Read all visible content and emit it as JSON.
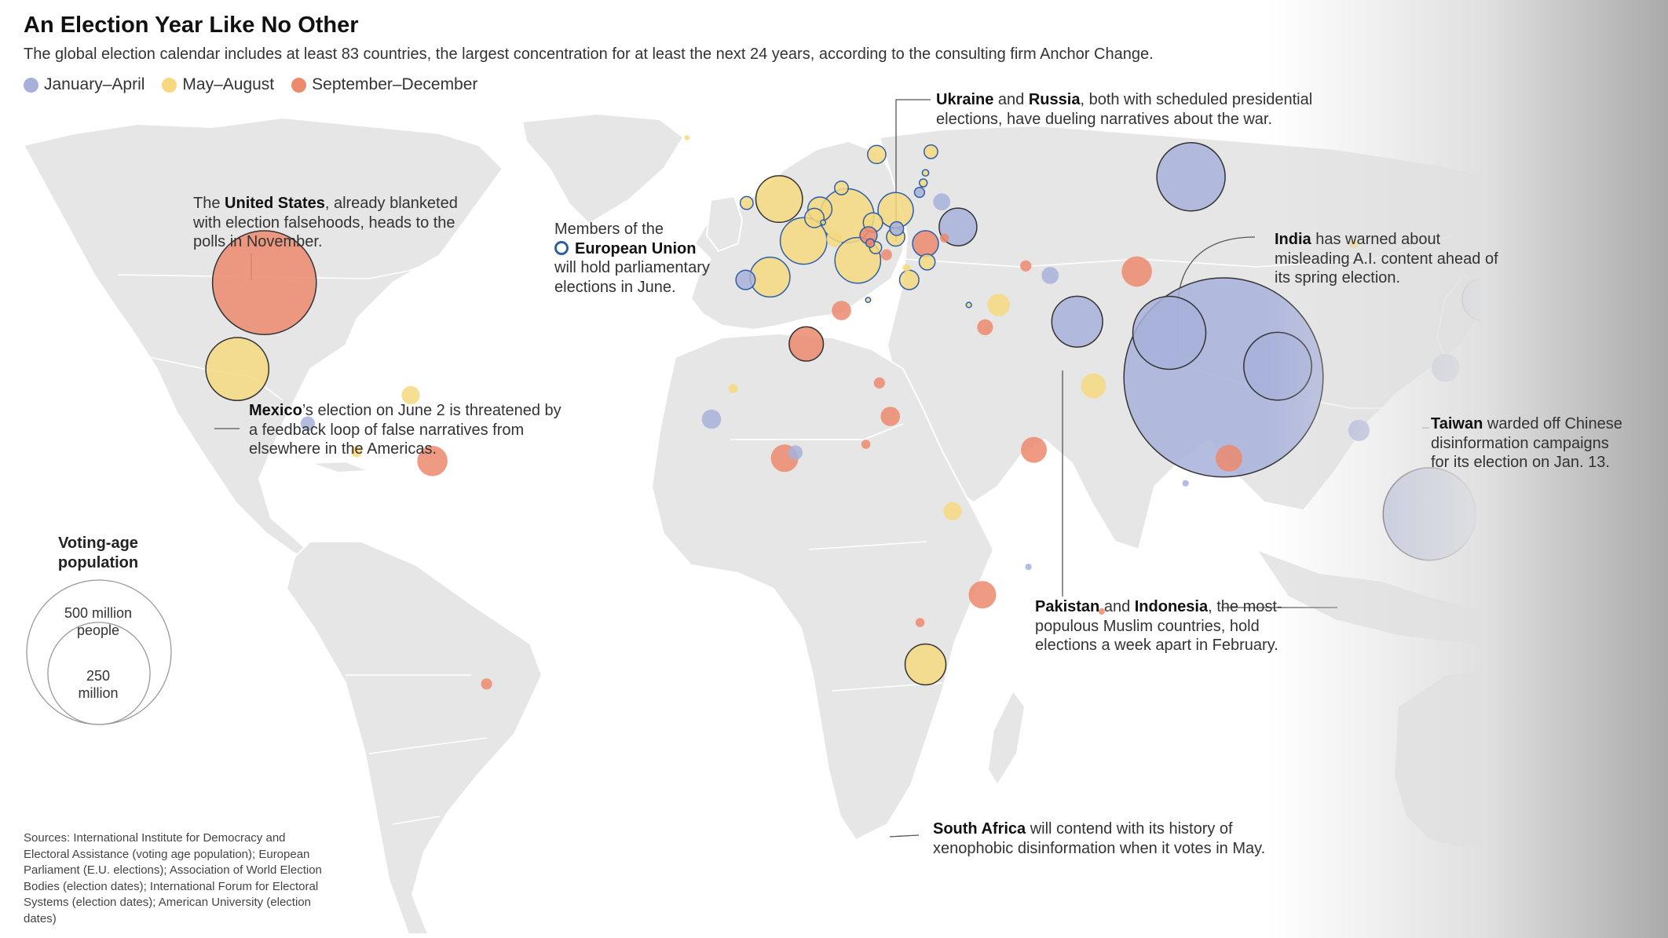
{
  "title": "An Election Year Like No Other",
  "subtitle": "The global election calendar includes at least 83 countries, the largest concentration for at least the next 24 years, according to the consulting firm Anchor Change.",
  "colors": {
    "jan_apr": "#a7b0da",
    "may_aug": "#f5d880",
    "sep_dec": "#ec8a6e",
    "eu_stroke": "#2f5fa8",
    "land": "#e6e6e6",
    "border": "#ffffff"
  },
  "legend": [
    {
      "label": "January–April",
      "color": "#a7b0da"
    },
    {
      "label": "May–August",
      "color": "#f5d880"
    },
    {
      "label": "September–December",
      "color": "#ec8a6e"
    }
  ],
  "annotations": {
    "us": {
      "pre": "The ",
      "bold": "United States",
      "post": ", already blanketed with election falsehoods, heads to the polls in November."
    },
    "mexico": {
      "bold": "Mexico",
      "post": "’s election on June 2 is threatened by a feedback loop of false narratives from elsewhere in the Americas."
    },
    "eu": {
      "pre": "Members of the",
      "bold": "European Union",
      "post": "will hold parliamentary elections in June."
    },
    "ukraine": {
      "bold1": "Ukraine",
      "mid": " and ",
      "bold2": "Russia",
      "post": ", both with scheduled presidential elections, have dueling narratives about the war."
    },
    "india": {
      "bold": "India",
      "post": " has warned about misleading A.I. content ahead of its spring election."
    },
    "taiwan": {
      "bold": "Taiwan",
      "post": " warded off Chinese disinformation campaigns for its election on Jan. 13."
    },
    "pakistan": {
      "bold1": "Pakistan",
      "mid": " and ",
      "bold2": "Indonesia",
      "post": ", the most-populous Muslim countries, hold elections a week apart in February."
    },
    "south_africa": {
      "bold": "South Africa",
      "post": " will contend with its history of xenophobic disinformation when it votes in May."
    }
  },
  "size_legend": {
    "title": "Voting-age population",
    "large_label": "500 million people",
    "small_label": "250 million",
    "large_value_millions": 500,
    "small_value_millions": 250
  },
  "sources": "Sources: International Institute for Democracy and Electoral Assistance (voting age population); European Parliament (E.U. elections); Association of World Election Bodies (election dates); International Forum for Electoral Systems (election dates); American University (election dates)",
  "countries": [
    {
      "name": "United States",
      "period": "sep_dec",
      "pop_m": 258,
      "lon": -97,
      "lat": 39
    },
    {
      "name": "Mexico",
      "period": "may_aug",
      "pop_m": 95,
      "lon": -102,
      "lat": 23.5
    },
    {
      "name": "Ukraine",
      "period": "jan_apr",
      "pop_m": 34,
      "lon": 31,
      "lat": 49
    },
    {
      "name": "Russia",
      "period": "jan_apr",
      "pop_m": 112,
      "lon": 74,
      "lat": 58
    },
    {
      "name": "India",
      "period": "jan_apr",
      "pop_m": 950,
      "lon": 80,
      "lat": 22
    },
    {
      "name": "Pakistan",
      "period": "jan_apr",
      "pop_m": 128,
      "lon": 70,
      "lat": 30
    },
    {
      "name": "Bangladesh",
      "period": "jan_apr",
      "pop_m": 110,
      "lon": 90,
      "lat": 24
    },
    {
      "name": "Indonesia",
      "period": "jan_apr",
      "pop_m": 205,
      "lon": 118,
      "lat": -2.5
    },
    {
      "name": "Iran",
      "period": "jan_apr",
      "pop_m": 62,
      "lon": 53,
      "lat": 32
    },
    {
      "name": "South Korea",
      "period": "jan_apr",
      "pop_m": 44,
      "lon": 128,
      "lat": 36
    },
    {
      "name": "Taiwan",
      "period": "jan_apr",
      "pop_m": 19,
      "lon": 121,
      "lat": 23.7
    },
    {
      "name": "Sri Lanka",
      "period": "sep_dec",
      "pop_m": 17,
      "lon": 81,
      "lat": 7.5
    },
    {
      "name": "Cambodia",
      "period": "jan_apr",
      "pop_m": 11,
      "lon": 105,
      "lat": 12.5
    },
    {
      "name": "South Africa",
      "period": "may_aug",
      "pop_m": 40,
      "lon": 25,
      "lat": -29.5
    },
    {
      "name": "Algeria",
      "period": "sep_dec",
      "pop_m": 28,
      "lon": 3,
      "lat": 28
    },
    {
      "name": "Georgia",
      "period": "sep_dec",
      "pop_m": 3,
      "lon": 43.5,
      "lat": 42
    },
    {
      "name": "Azerbaijan",
      "period": "jan_apr",
      "pop_m": 7,
      "lon": 48,
      "lat": 40.3
    },
    {
      "name": "Uzbekistan",
      "period": "sep_dec",
      "pop_m": 22,
      "lon": 64,
      "lat": 41
    },
    {
      "name": "Mongolia",
      "period": "may_aug",
      "pop_m": 2,
      "lon": 104,
      "lat": 46
    },
    {
      "name": "Syria",
      "period": "may_aug",
      "pop_m": 12,
      "lon": 38.5,
      "lat": 35
    },
    {
      "name": "Jordan",
      "period": "sep_dec",
      "pop_m": 6,
      "lon": 36,
      "lat": 31
    },
    {
      "name": "Tunisia",
      "period": "sep_dec",
      "pop_m": 9,
      "lon": 9.5,
      "lat": 34
    },
    {
      "name": "Oman",
      "period": "may_aug",
      "pop_m": 15,
      "lon": 56,
      "lat": 20.5
    },
    {
      "name": "Venezuela",
      "period": "sep_dec",
      "pop_m": 22,
      "lon": -66,
      "lat": 7
    },
    {
      "name": "Panama",
      "period": "may_aug",
      "pop_m": 3,
      "lon": -80,
      "lat": 8.7
    },
    {
      "name": "El Salvador",
      "period": "jan_apr",
      "pop_m": 5,
      "lon": -89,
      "lat": 13.7
    },
    {
      "name": "Dominican Republic",
      "period": "may_aug",
      "pop_m": 8,
      "lon": -70,
      "lat": 18.8
    },
    {
      "name": "Uruguay",
      "period": "sep_dec",
      "pop_m": 3,
      "lon": -56,
      "lat": -33
    },
    {
      "name": "Senegal",
      "period": "jan_apr",
      "pop_m": 9,
      "lon": -14.5,
      "lat": 14.5
    },
    {
      "name": "Mauritania",
      "period": "may_aug",
      "pop_m": 2,
      "lon": -10.5,
      "lat": 20
    },
    {
      "name": "Ghana",
      "period": "sep_dec",
      "pop_m": 18,
      "lon": -1,
      "lat": 7.5
    },
    {
      "name": "Togo",
      "period": "jan_apr",
      "pop_m": 5,
      "lon": 1,
      "lat": 8.5
    },
    {
      "name": "Chad",
      "period": "sep_dec",
      "pop_m": 9,
      "lon": 18.5,
      "lat": 15
    },
    {
      "name": "Niger",
      "period": "sep_dec",
      "pop_m": 3,
      "lon": 16.5,
      "lat": 21
    },
    {
      "name": "Central African Republic",
      "period": "sep_dec",
      "pop_m": 2,
      "lon": 14,
      "lat": 10
    },
    {
      "name": "Somaliland",
      "period": "sep_dec",
      "pop_m": 16,
      "lon": 45,
      "lat": 9
    },
    {
      "name": "Rwanda",
      "period": "may_aug",
      "pop_m": 8,
      "lon": 30,
      "lat": -2
    },
    {
      "name": "Mozambique",
      "period": "sep_dec",
      "pop_m": 18,
      "lon": 35.5,
      "lat": -17
    },
    {
      "name": "Botswana",
      "period": "sep_dec",
      "pop_m": 2,
      "lon": 24,
      "lat": -22
    },
    {
      "name": "Mauritius",
      "period": "sep_dec",
      "pop_m": 1,
      "lon": 57.5,
      "lat": -20
    },
    {
      "name": "Comoros",
      "period": "jan_apr",
      "pop_m": 1,
      "lon": 44,
      "lat": -12
    },
    {
      "name": "Maldives",
      "period": "jan_apr",
      "pop_m": 1,
      "lon": 73,
      "lat": 3
    },
    {
      "name": "Iceland",
      "period": "may_aug",
      "pop_m": 0.3,
      "lon": -19,
      "lat": 65
    },
    {
      "name": "United Kingdom",
      "period": "may_aug",
      "pop_m": 52,
      "lon": -2,
      "lat": 54
    },
    {
      "name": "Belarus",
      "period": "jan_apr",
      "pop_m": 7,
      "lon": 28,
      "lat": 53.5
    },
    {
      "name": "Moldova",
      "period": "sep_dec",
      "pop_m": 2,
      "lon": 28.5,
      "lat": 47
    },
    {
      "name": "North Macedonia",
      "period": "may_aug",
      "pop_m": 1.5,
      "lon": 21.5,
      "lat": 41.6
    },
    {
      "name": "Bosnia and Herzegovina",
      "period": "sep_dec",
      "pop_m": 3,
      "lon": 17.8,
      "lat": 44
    },
    {
      "name": "Switzerland",
      "period": "may_aug",
      "pop_m": 6,
      "lon": 8.2,
      "lat": 46.8
    },
    {
      "name": "Germany",
      "period": "may_aug",
      "pop_m": 70,
      "lon": 10.5,
      "lat": 51,
      "eu": true
    },
    {
      "name": "France",
      "period": "may_aug",
      "pop_m": 52,
      "lon": 2.5,
      "lat": 46.5,
      "eu": true
    },
    {
      "name": "Italy",
      "period": "may_aug",
      "pop_m": 50,
      "lon": 12.5,
      "lat": 43,
      "eu": true
    },
    {
      "name": "Spain",
      "period": "may_aug",
      "pop_m": 38,
      "lon": -3.7,
      "lat": 40,
      "eu": true
    },
    {
      "name": "Poland",
      "period": "may_aug",
      "pop_m": 30,
      "lon": 19.5,
      "lat": 52,
      "eu": true
    },
    {
      "name": "Romania",
      "period": "sep_dec",
      "pop_m": 16,
      "lon": 25,
      "lat": 46,
      "eu": true
    },
    {
      "name": "Netherlands",
      "period": "may_aug",
      "pop_m": 14,
      "lon": 5.5,
      "lat": 52.2,
      "eu": true
    },
    {
      "name": "Belgium",
      "period": "may_aug",
      "pop_m": 9,
      "lon": 4.5,
      "lat": 50.6,
      "eu": true
    },
    {
      "name": "Portugal",
      "period": "jan_apr",
      "pop_m": 9,
      "lon": -8.2,
      "lat": 39.5,
      "eu": true
    },
    {
      "name": "Greece",
      "period": "may_aug",
      "pop_m": 9,
      "lon": 22,
      "lat": 39.5,
      "eu": true
    },
    {
      "name": "Czechia",
      "period": "may_aug",
      "pop_m": 9,
      "lon": 15.3,
      "lat": 49.8,
      "eu": true
    },
    {
      "name": "Sweden",
      "period": "may_aug",
      "pop_m": 8,
      "lon": 16,
      "lat": 62,
      "eu": true
    },
    {
      "name": "Hungary",
      "period": "may_aug",
      "pop_m": 8,
      "lon": 19.5,
      "lat": 47.2,
      "eu": true
    },
    {
      "name": "Austria",
      "period": "sep_dec",
      "pop_m": 7,
      "lon": 14.5,
      "lat": 47.5,
      "eu": true
    },
    {
      "name": "Bulgaria",
      "period": "may_aug",
      "pop_m": 6,
      "lon": 25.3,
      "lat": 42.7,
      "eu": true
    },
    {
      "name": "Denmark",
      "period": "may_aug",
      "pop_m": 4.5,
      "lon": 9.5,
      "lat": 56,
      "eu": true
    },
    {
      "name": "Finland",
      "period": "may_aug",
      "pop_m": 4.5,
      "lon": 26,
      "lat": 62.5,
      "eu": true
    },
    {
      "name": "Slovakia",
      "period": "jan_apr",
      "pop_m": 4.5,
      "lon": 19.7,
      "lat": 48.7,
      "eu": true
    },
    {
      "name": "Ireland",
      "period": "may_aug",
      "pop_m": 4,
      "lon": -8,
      "lat": 53.3,
      "eu": true
    },
    {
      "name": "Croatia",
      "period": "may_aug",
      "pop_m": 3.5,
      "lon": 15.8,
      "lat": 45.3,
      "eu": true
    },
    {
      "name": "Lithuania",
      "period": "jan_apr",
      "pop_m": 2.4,
      "lon": 23.9,
      "lat": 55.2,
      "eu": true
    },
    {
      "name": "Slovenia",
      "period": "sep_dec",
      "pop_m": 1.7,
      "lon": 14.8,
      "lat": 46.1,
      "eu": true
    },
    {
      "name": "Latvia",
      "period": "may_aug",
      "pop_m": 1.5,
      "lon": 24.6,
      "lat": 56.9,
      "eu": true
    },
    {
      "name": "Estonia",
      "period": "may_aug",
      "pop_m": 1,
      "lon": 25,
      "lat": 58.7,
      "eu": true
    },
    {
      "name": "Cyprus",
      "period": "may_aug",
      "pop_m": 0.7,
      "lon": 33,
      "lat": 35,
      "eu": true
    },
    {
      "name": "Luxembourg",
      "period": "may_aug",
      "pop_m": 0.5,
      "lon": 6.1,
      "lat": 49.8,
      "eu": true
    },
    {
      "name": "Malta",
      "period": "may_aug",
      "pop_m": 0.4,
      "lon": 14.4,
      "lat": 35.9,
      "eu": true
    }
  ]
}
